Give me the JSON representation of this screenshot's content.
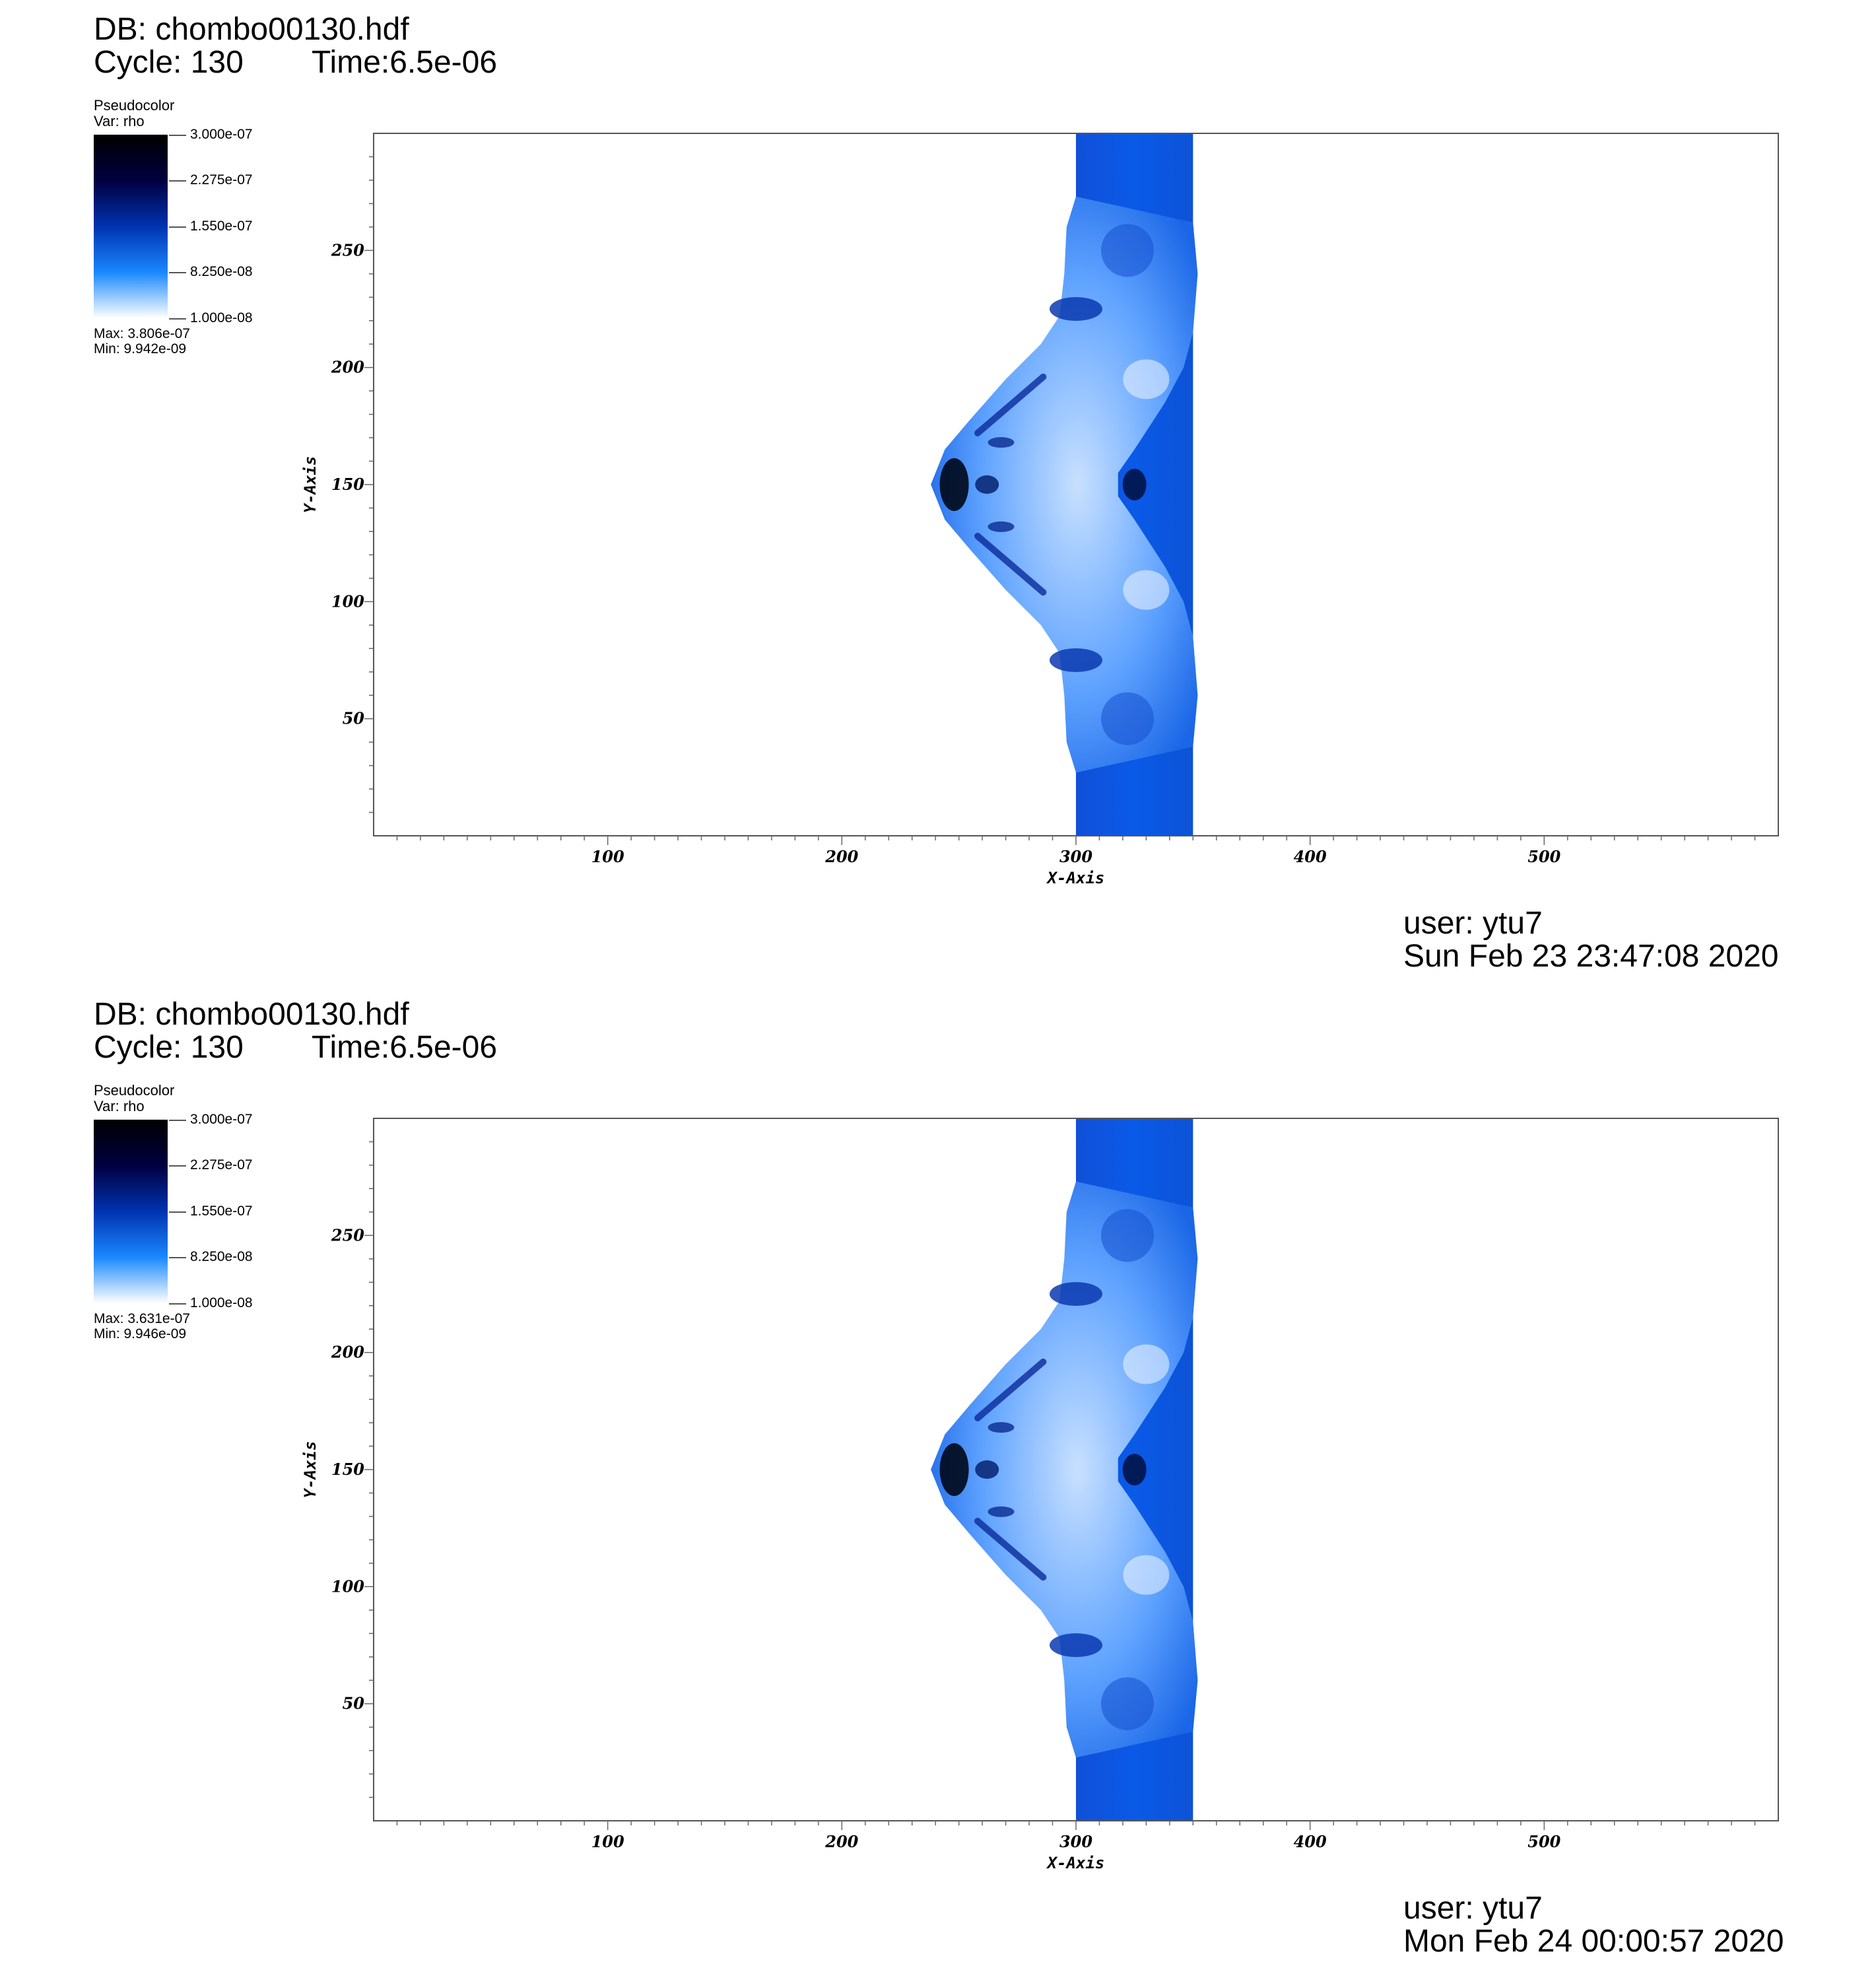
{
  "panels": [
    {
      "db": "DB: chombo00130.hdf",
      "cycle": "Cycle: 130",
      "time": "Time:6.5e-06",
      "legend": {
        "title": "Pseudocolor",
        "var": "Var: rho",
        "ticks": [
          "3.000e-07",
          "2.275e-07",
          "1.550e-07",
          "8.250e-08",
          "1.000e-08"
        ],
        "max": "Max:  3.806e-07",
        "min": "Min:  9.942e-09"
      },
      "user": "user: ytu7",
      "date": "Sun Feb 23 23:47:08 2020"
    },
    {
      "db": "DB: chombo00130.hdf",
      "cycle": "Cycle: 130",
      "time": "Time:6.5e-06",
      "legend": {
        "title": "Pseudocolor",
        "var": "Var: rho",
        "ticks": [
          "3.000e-07",
          "2.275e-07",
          "1.550e-07",
          "8.250e-08",
          "1.000e-08"
        ],
        "max": "Max:  3.631e-07",
        "min": "Min:  9.946e-09"
      },
      "user": "user: ytu7",
      "date": "Mon Feb 24 00:00:57 2020"
    }
  ],
  "chart_data": [
    {
      "type": "heatmap",
      "variable": "rho",
      "xlabel": "X-Axis",
      "ylabel": "Y-Axis",
      "xlim": [
        0,
        600
      ],
      "ylim": [
        0,
        300
      ],
      "xticks": [
        "100",
        "200",
        "300",
        "400",
        "500"
      ],
      "yticks": [
        "50",
        "100",
        "150",
        "200",
        "250"
      ],
      "colorbar_range": [
        1e-08,
        3e-07
      ],
      "data_max": 3.806e-07,
      "data_min": 9.942e-09,
      "colormap": [
        "#000000",
        "#000040",
        "#0033b0",
        "#1a88ff",
        "#ffffff"
      ]
    },
    {
      "type": "heatmap",
      "variable": "rho",
      "xlabel": "X-Axis",
      "ylabel": "Y-Axis",
      "xlim": [
        0,
        600
      ],
      "ylim": [
        0,
        300
      ],
      "xticks": [
        "100",
        "200",
        "300",
        "400",
        "500"
      ],
      "yticks": [
        "50",
        "100",
        "150",
        "200",
        "250"
      ],
      "colorbar_range": [
        1e-08,
        3e-07
      ],
      "data_max": 3.631e-07,
      "data_min": 9.946e-09,
      "colormap": [
        "#000000",
        "#000040",
        "#0033b0",
        "#1a88ff",
        "#ffffff"
      ]
    }
  ]
}
